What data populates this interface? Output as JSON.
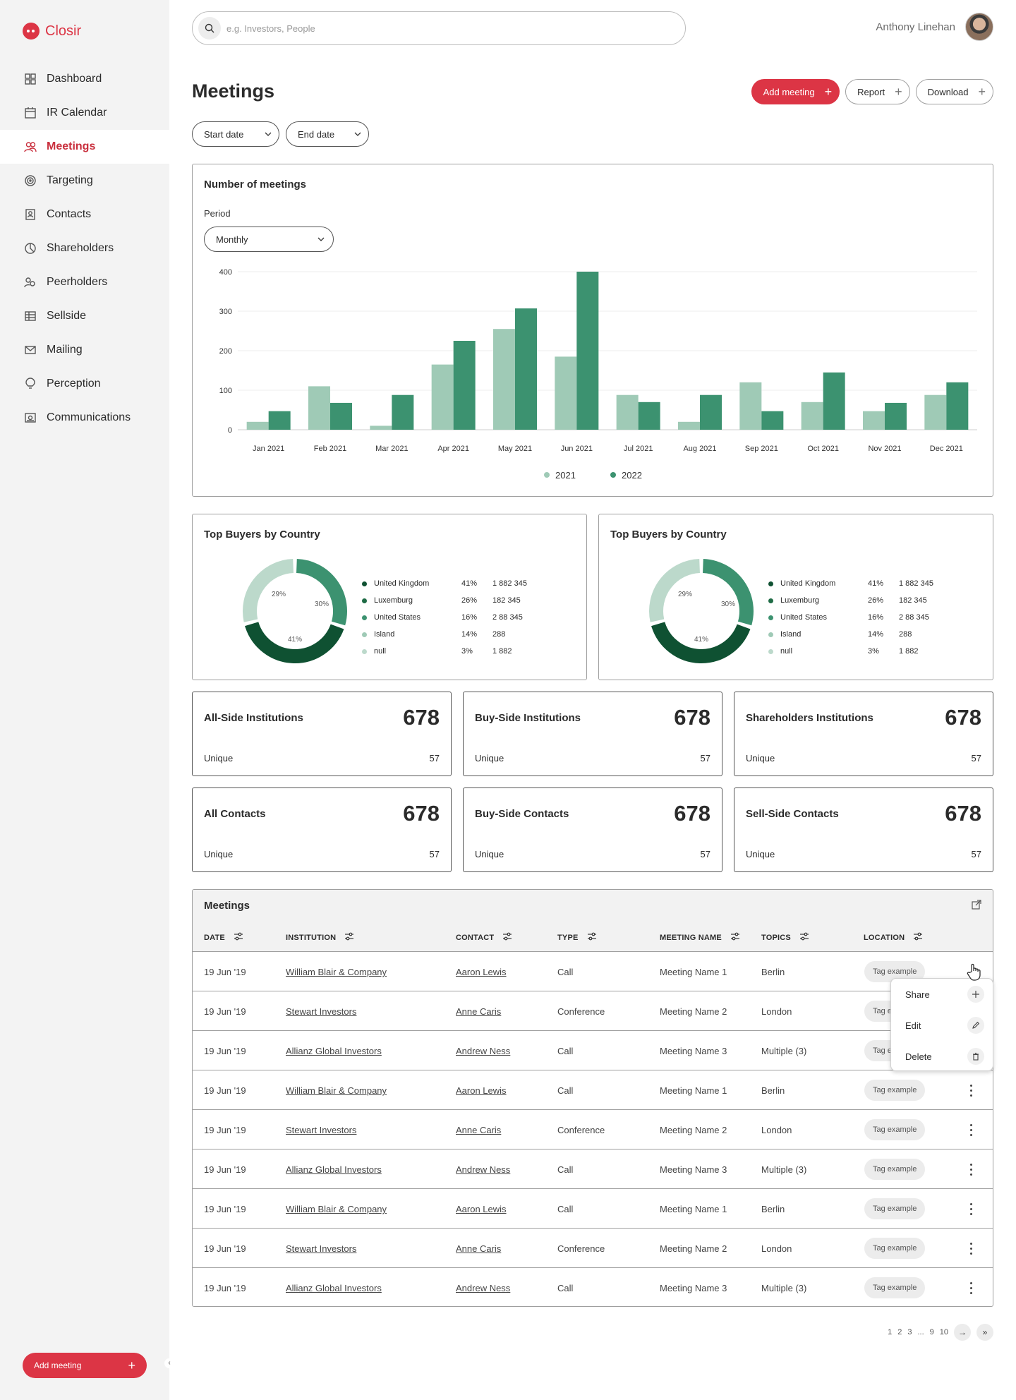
{
  "app": {
    "name": "Closir"
  },
  "sidebar": {
    "items": [
      {
        "label": "Dashboard",
        "icon": "grid-icon"
      },
      {
        "label": "IR Calendar",
        "icon": "calendar-icon"
      },
      {
        "label": "Meetings",
        "icon": "people-icon",
        "active": true
      },
      {
        "label": "Targeting",
        "icon": "target-icon"
      },
      {
        "label": "Contacts",
        "icon": "contact-card-icon"
      },
      {
        "label": "Shareholders",
        "icon": "pie-icon"
      },
      {
        "label": "Peerholders",
        "icon": "peers-icon"
      },
      {
        "label": "Sellside",
        "icon": "table-icon"
      },
      {
        "label": "Mailing",
        "icon": "mail-icon"
      },
      {
        "label": "Perception",
        "icon": "bulb-icon"
      },
      {
        "label": "Communications",
        "icon": "broadcast-icon"
      }
    ],
    "add_meeting_label": "Add meeting"
  },
  "header": {
    "search_placeholder": "e.g. Investors, People",
    "user_name": "Anthony Linehan"
  },
  "page": {
    "title": "Meetings",
    "actions": {
      "add_meeting": "Add meeting",
      "report": "Report",
      "download": "Download"
    },
    "filters": {
      "start_date": "Start date",
      "end_date": "End date"
    }
  },
  "meetings_chart": {
    "title": "Number of meetings",
    "period_label": "Period",
    "period_value": "Monthly"
  },
  "chart_data": [
    {
      "type": "bar",
      "title": "Number of meetings",
      "categories": [
        "Jan 2021",
        "Feb 2021",
        "Mar 2021",
        "Apr 2021",
        "May 2021",
        "Jun 2021",
        "Jul 2021",
        "Aug 2021",
        "Sep 2021",
        "Oct 2021",
        "Nov 2021",
        "Dec 2021"
      ],
      "series": [
        {
          "name": "2021",
          "color": "#9fcab6",
          "values": [
            20,
            110,
            10,
            165,
            255,
            185,
            88,
            20,
            120,
            70,
            47,
            88
          ]
        },
        {
          "name": "2022",
          "color": "#3c9270",
          "values": [
            47,
            68,
            88,
            225,
            307,
            400,
            70,
            88,
            47,
            145,
            68,
            120
          ]
        }
      ],
      "yticks": [
        0,
        100,
        200,
        300,
        400
      ],
      "ylim": [
        0,
        400
      ],
      "grid": true,
      "legend": "bottom"
    },
    {
      "type": "pie",
      "title": "Top Buyers by Country",
      "slices": [
        {
          "label": "United Kingdom",
          "percent": 41,
          "value": "1 882 345",
          "color": "#0f5132"
        },
        {
          "label": "Luxemburg",
          "percent": 26,
          "value": "182 345",
          "color": "#1e6b45"
        },
        {
          "label": "United States",
          "percent": 16,
          "value": "2 88 345",
          "color": "#3c9270"
        },
        {
          "label": "Island",
          "percent": 14,
          "value": "288",
          "color": "#9fcab6"
        },
        {
          "label": "null",
          "percent": 3,
          "value": "1 882",
          "color": "#bcd9cb"
        }
      ],
      "ring_labels": [
        "41%",
        "30%",
        "29%"
      ]
    },
    {
      "type": "pie",
      "title": "Top Buyers by Country",
      "slices": [
        {
          "label": "United Kingdom",
          "percent": 41,
          "value": "1 882 345",
          "color": "#0f5132"
        },
        {
          "label": "Luxemburg",
          "percent": 26,
          "value": "182 345",
          "color": "#1e6b45"
        },
        {
          "label": "United States",
          "percent": 16,
          "value": "2 88 345",
          "color": "#3c9270"
        },
        {
          "label": "Island",
          "percent": 14,
          "value": "288",
          "color": "#9fcab6"
        },
        {
          "label": "null",
          "percent": 3,
          "value": "1 882",
          "color": "#bcd9cb"
        }
      ],
      "ring_labels": [
        "41%",
        "30%",
        "29%"
      ]
    }
  ],
  "stats": [
    {
      "title": "All-Side Institutions",
      "value": "678",
      "unique_label": "Unique",
      "unique_value": "57"
    },
    {
      "title": "Buy-Side Institutions",
      "value": "678",
      "unique_label": "Unique",
      "unique_value": "57"
    },
    {
      "title": "Shareholders Institutions",
      "value": "678",
      "unique_label": "Unique",
      "unique_value": "57"
    },
    {
      "title": "All Contacts",
      "value": "678",
      "unique_label": "Unique",
      "unique_value": "57"
    },
    {
      "title": "Buy-Side Contacts",
      "value": "678",
      "unique_label": "Unique",
      "unique_value": "57"
    },
    {
      "title": "Sell-Side Contacts",
      "value": "678",
      "unique_label": "Unique",
      "unique_value": "57"
    }
  ],
  "table": {
    "title": "Meetings",
    "columns": [
      "DATE",
      "INSTITUTION",
      "CONTACT",
      "TYPE",
      "MEETING NAME",
      "TOPICS",
      "LOCATION"
    ],
    "rows": [
      {
        "date": "19 Jun '19",
        "institution": "William Blair & Company",
        "contact": "Aaron Lewis",
        "type": "Call",
        "meeting": "Meeting Name 1",
        "topic": "Berlin",
        "location": "Tag example"
      },
      {
        "date": "19 Jun '19",
        "institution": "Stewart Investors",
        "contact": "Anne Caris",
        "type": "Conference",
        "meeting": "Meeting Name 2",
        "topic": "London",
        "location": "Tag example"
      },
      {
        "date": "19 Jun '19",
        "institution": "Allianz Global Investors",
        "contact": "Andrew Ness",
        "type": "Call",
        "meeting": "Meeting Name 3",
        "topic": "Multiple (3)",
        "location": "Tag example"
      },
      {
        "date": "19 Jun '19",
        "institution": "William Blair & Company",
        "contact": "Aaron Lewis",
        "type": "Call",
        "meeting": "Meeting Name 1",
        "topic": "Berlin",
        "location": "Tag example"
      },
      {
        "date": "19 Jun '19",
        "institution": "Stewart Investors",
        "contact": "Anne Caris",
        "type": "Conference",
        "meeting": "Meeting Name 2",
        "topic": "London",
        "location": "Tag example"
      },
      {
        "date": "19 Jun '19",
        "institution": "Allianz Global Investors",
        "contact": "Andrew Ness",
        "type": "Call",
        "meeting": "Meeting Name 3",
        "topic": "Multiple (3)",
        "location": "Tag example"
      },
      {
        "date": "19 Jun '19",
        "institution": "William Blair & Company",
        "contact": "Aaron Lewis",
        "type": "Call",
        "meeting": "Meeting Name 1",
        "topic": "Berlin",
        "location": "Tag example"
      },
      {
        "date": "19 Jun '19",
        "institution": "Stewart Investors",
        "contact": "Anne Caris",
        "type": "Conference",
        "meeting": "Meeting Name 2",
        "topic": "London",
        "location": "Tag example"
      },
      {
        "date": "19 Jun '19",
        "institution": "Allianz Global Investors",
        "contact": "Andrew Ness",
        "type": "Call",
        "meeting": "Meeting Name 3",
        "topic": "Multiple (3)",
        "location": "Tag example"
      }
    ],
    "context_menu": {
      "share": "Share",
      "edit": "Edit",
      "delete": "Delete"
    }
  },
  "pagination": {
    "pages": [
      "1",
      "2",
      "3",
      "...",
      "9",
      "10"
    ]
  },
  "colors": {
    "accent": "#dc3545",
    "series_2021": "#9fcab6",
    "series_2022": "#3c9270"
  }
}
